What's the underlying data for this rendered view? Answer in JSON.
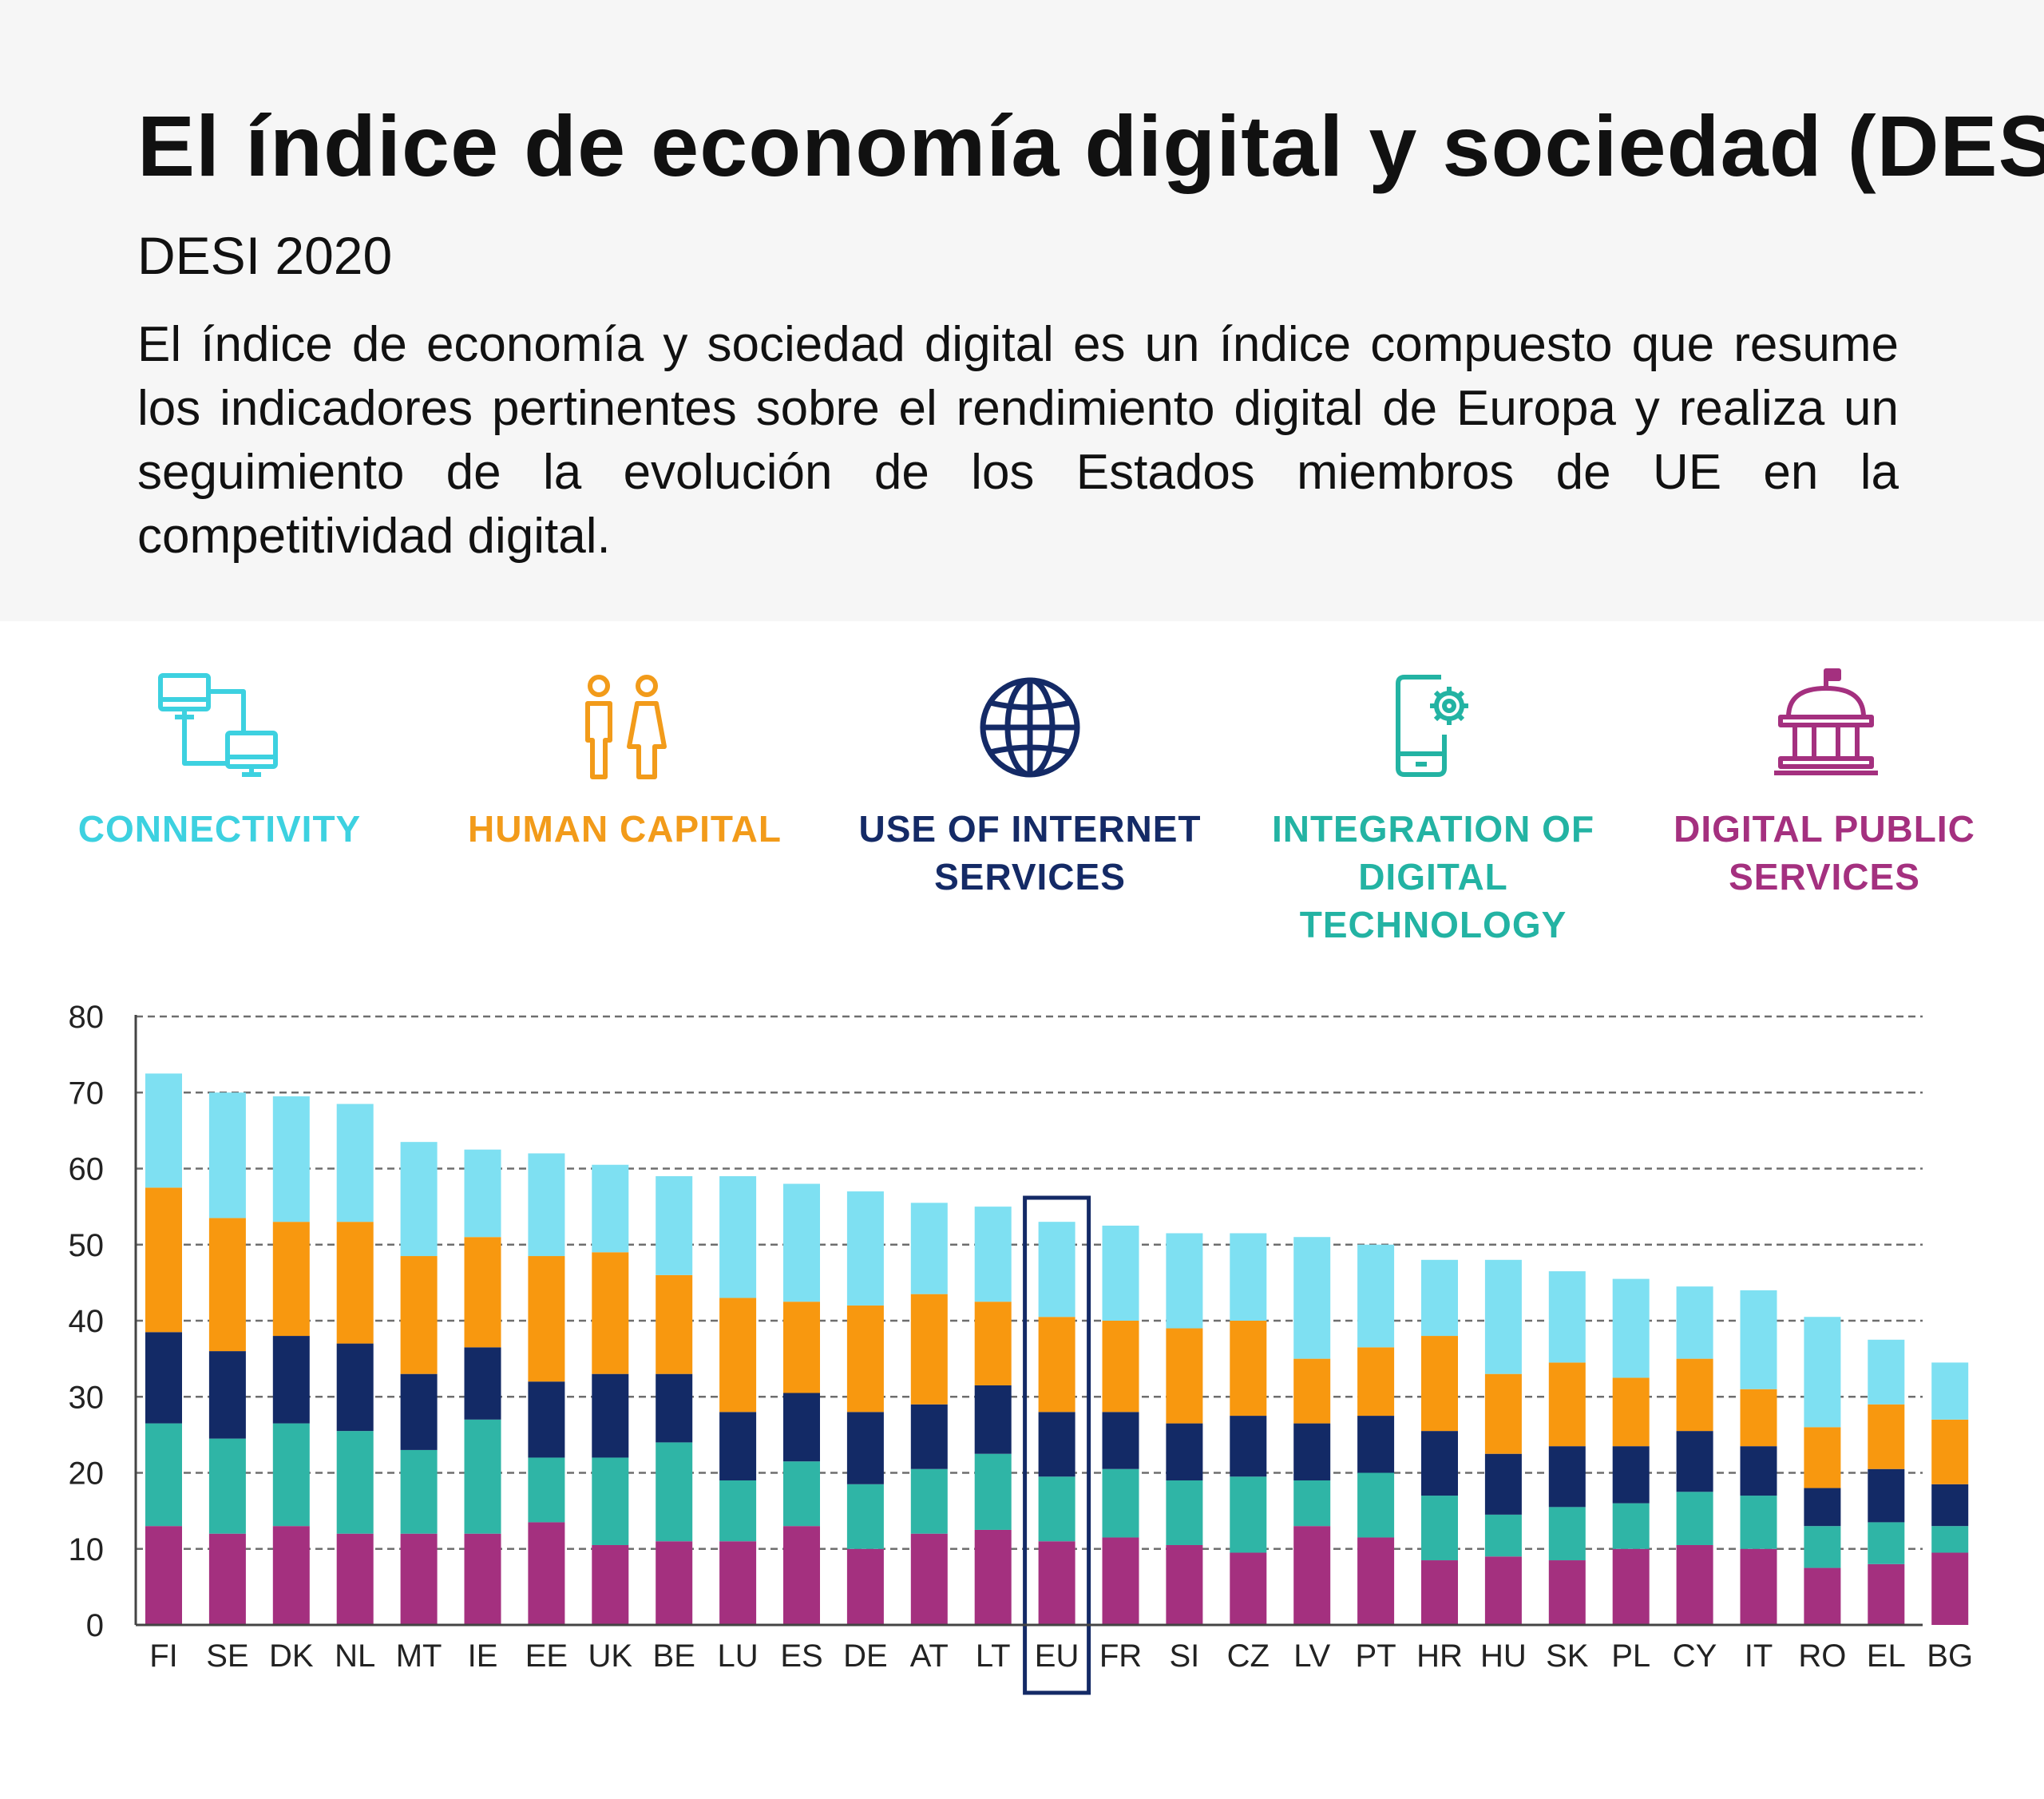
{
  "title": "El índice de economía digital y sociedad (DESI)",
  "subtitle": "DESI 2020",
  "description": "El índice de economía y sociedad digital es un índice compuesto que resume los indicadores pertinentes sobre el rendimiento digital de Europa y realiza un seguimiento de la evolución de los Estados miembros de UE en la competitividad digital.",
  "legend": [
    {
      "label": "CONNECTIVITY",
      "icon": "connected-computers-icon",
      "color": "#3dd1e0"
    },
    {
      "label": "HUMAN CAPITAL",
      "icon": "people-icon",
      "color": "#f29b1a"
    },
    {
      "label": "USE OF INTERNET SERVICES",
      "icon": "globe-icon",
      "color": "#142a66"
    },
    {
      "label": "INTEGRATION OF DIGITAL TECHNOLOGY",
      "icon": "phone-gear-icon",
      "color": "#23b3a3"
    },
    {
      "label": "DIGITAL PUBLIC SERVICES",
      "icon": "government-building-icon",
      "color": "#a4307f"
    }
  ],
  "chart_data": {
    "type": "bar",
    "stacked": true,
    "categories": [
      "FI",
      "SE",
      "DK",
      "NL",
      "MT",
      "IE",
      "EE",
      "UK",
      "BE",
      "LU",
      "ES",
      "DE",
      "AT",
      "LT",
      "EU",
      "FR",
      "SI",
      "CZ",
      "LV",
      "PT",
      "HR",
      "HU",
      "SK",
      "PL",
      "CY",
      "IT",
      "RO",
      "EL",
      "BG"
    ],
    "highlight": "EU",
    "ylim": [
      0,
      80
    ],
    "yticks": [
      0,
      10,
      20,
      30,
      40,
      50,
      60,
      70,
      80
    ],
    "grid": true,
    "series": [
      {
        "name": "DIGITAL PUBLIC SERVICES",
        "color": "#a4307f",
        "values": [
          13,
          12,
          13,
          12,
          12,
          12,
          13.5,
          10.5,
          11,
          11,
          13,
          10,
          12,
          12.5,
          11,
          11.5,
          10.5,
          9.5,
          13,
          11.5,
          8.5,
          9,
          8.5,
          10,
          10.5,
          10,
          7.5,
          8,
          9.5
        ]
      },
      {
        "name": "INTEGRATION OF DIGITAL TECHNOLOGY",
        "color": "#2fb5a6",
        "values": [
          13.5,
          12.5,
          13.5,
          13.5,
          11,
          15,
          8.5,
          11.5,
          13,
          8,
          8.5,
          8.5,
          8.5,
          10,
          8.5,
          9,
          8.5,
          10,
          6,
          8.5,
          8.5,
          5.5,
          7,
          6,
          7,
          7,
          5.5,
          5.5,
          3.5
        ]
      },
      {
        "name": "USE OF INTERNET SERVICES",
        "color": "#132a66",
        "values": [
          12,
          11.5,
          11.5,
          11.5,
          10,
          9.5,
          10,
          11,
          9,
          9,
          9,
          9.5,
          8.5,
          9,
          8.5,
          7.5,
          7.5,
          8,
          7.5,
          7.5,
          8.5,
          8,
          8,
          7.5,
          8,
          6.5,
          5,
          7,
          5.5
        ]
      },
      {
        "name": "HUMAN CAPITAL",
        "color": "#f8980f",
        "values": [
          19,
          17.5,
          15,
          16,
          15.5,
          14.5,
          16.5,
          16,
          13,
          15,
          12,
          14,
          14.5,
          11,
          12.5,
          12,
          12.5,
          12.5,
          8.5,
          9,
          12.5,
          10.5,
          11,
          9,
          9.5,
          7.5,
          8,
          8.5,
          8.5
        ]
      },
      {
        "name": "CONNECTIVITY",
        "color": "#7ee0f2",
        "values": [
          15,
          16.5,
          16.5,
          15.5,
          15,
          11.5,
          13.5,
          11.5,
          13,
          16,
          15.5,
          15,
          12,
          12.5,
          12.5,
          12.5,
          12.5,
          11.5,
          16,
          13.5,
          10,
          15,
          12,
          13,
          9.5,
          13,
          14.5,
          8.5,
          7.5
        ]
      }
    ]
  }
}
